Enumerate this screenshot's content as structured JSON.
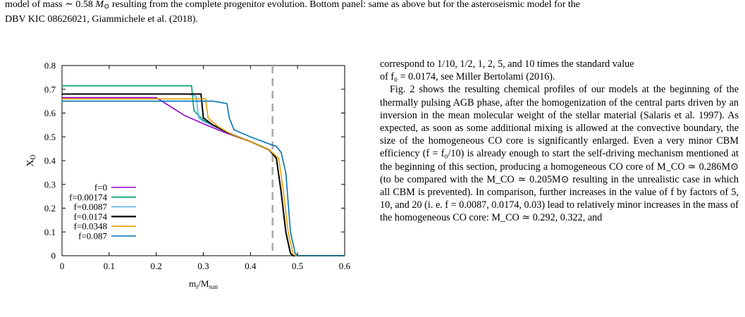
{
  "caption": {
    "line1_pre": "model of mass ∼ 0.58 ",
    "line1_msun": "M",
    "line1_post": " resulting from the complete progenitor evolution. Bottom panel: same as above but for the asteroseismic model for the",
    "line2": "DBV KIC 08626021, Giammichele et al. (2018)."
  },
  "chart_data": {
    "type": "line",
    "xlabel": "m_r/M_sun",
    "ylabel": "X_O",
    "xlim": [
      0,
      0.6
    ],
    "ylim": [
      0,
      0.8
    ],
    "xticks": [
      "0",
      "0.1",
      "0.2",
      "0.3",
      "0.4",
      "0.5",
      "0.6"
    ],
    "yticks": [
      "0",
      "0.1",
      "0.2",
      "0.3",
      "0.4",
      "0.5",
      "0.6",
      "0.7",
      "0.8"
    ],
    "grid": false,
    "legend_position": "bottom-left",
    "vline": {
      "x": 0.447,
      "style": "dashed",
      "color": "#aaaaaa"
    },
    "series": [
      {
        "name": "f=0",
        "color": "#9400d3",
        "x": [
          0,
          0.2,
          0.26,
          0.3,
          0.35,
          0.4,
          0.44,
          0.455,
          0.465,
          0.475,
          0.485,
          0.49,
          0.6
        ],
        "y": [
          0.665,
          0.665,
          0.59,
          0.555,
          0.515,
          0.48,
          0.445,
          0.41,
          0.27,
          0.1,
          0.01,
          0.0,
          0.0
        ]
      },
      {
        "name": "f=0.00174",
        "color": "#009e73",
        "x": [
          0,
          0.24,
          0.275,
          0.28,
          0.3,
          0.35,
          0.4,
          0.44,
          0.455,
          0.465,
          0.475,
          0.485,
          0.49,
          0.6
        ],
        "y": [
          0.715,
          0.715,
          0.715,
          0.61,
          0.57,
          0.52,
          0.48,
          0.445,
          0.41,
          0.27,
          0.1,
          0.01,
          0.0,
          0.0
        ]
      },
      {
        "name": "f=0.0087",
        "color": "#56b4e9",
        "x": [
          0,
          0.27,
          0.285,
          0.29,
          0.3,
          0.35,
          0.4,
          0.44,
          0.455,
          0.465,
          0.475,
          0.485,
          0.49,
          0.6
        ],
        "y": [
          0.68,
          0.68,
          0.67,
          0.58,
          0.565,
          0.52,
          0.48,
          0.445,
          0.41,
          0.27,
          0.1,
          0.01,
          0.0,
          0.0
        ]
      },
      {
        "name": "f=0.0174",
        "color": "#000000",
        "x": [
          0,
          0.28,
          0.295,
          0.3,
          0.32,
          0.36,
          0.4,
          0.44,
          0.455,
          0.465,
          0.475,
          0.485,
          0.49,
          0.6
        ],
        "y": [
          0.68,
          0.68,
          0.68,
          0.58,
          0.55,
          0.51,
          0.48,
          0.445,
          0.41,
          0.27,
          0.1,
          0.01,
          0.0,
          0.0
        ]
      },
      {
        "name": "f=0.0348",
        "color": "#e69f00",
        "x": [
          0,
          0.29,
          0.305,
          0.31,
          0.33,
          0.36,
          0.4,
          0.44,
          0.46,
          0.47,
          0.48,
          0.49,
          0.495,
          0.6
        ],
        "y": [
          0.66,
          0.66,
          0.66,
          0.58,
          0.545,
          0.51,
          0.48,
          0.445,
          0.41,
          0.27,
          0.1,
          0.01,
          0.0,
          0.0
        ]
      },
      {
        "name": "f=0.087",
        "color": "#0072b2",
        "x": [
          0,
          0.29,
          0.32,
          0.35,
          0.355,
          0.365,
          0.4,
          0.44,
          0.455,
          0.465,
          0.475,
          0.485,
          0.495,
          0.5,
          0.6
        ],
        "y": [
          0.65,
          0.65,
          0.65,
          0.64,
          0.58,
          0.53,
          0.5,
          0.47,
          0.46,
          0.435,
          0.35,
          0.1,
          0.01,
          0.0,
          0.0
        ]
      }
    ]
  },
  "body": {
    "p1_line1": "correspond to 1/10, 1/2, 1, 2, 5, and 10 times the standard value",
    "p1_line2": "of f₀ = 0.0174, see Miller Bertolami (2016).",
    "p2": "Fig. 2 shows the resulting chemical profiles of our models at the beginning of the thermally pulsing AGB phase, after the homogenization of the central parts driven by an inversion in the mean molecular weight of the stellar material (Salaris et al. 1997). As expected, as soon as some additional mixing is allowed at the convective boundary, the size of the homogeneous CO core is significantly enlarged. Even a very minor CBM efficiency (f = f₀/10) is already enough to start the self-driving mechanism mentioned at the beginning of this section, producing a homogeneous CO core of M_CO ≃ 0.286M⊙ (to be compared with the M_CO ≃ 0.205M⊙ resulting in the unrealistic case in which all CBM is prevented). In comparison, further increases in the value of f by factors of 5, 10, and 20 (i. e. f = 0.0087, 0.0174, 0.03) lead to relatively minor increases in the mass of the homogeneous CO core: M_CO ≃ 0.292, 0.322, and"
  }
}
